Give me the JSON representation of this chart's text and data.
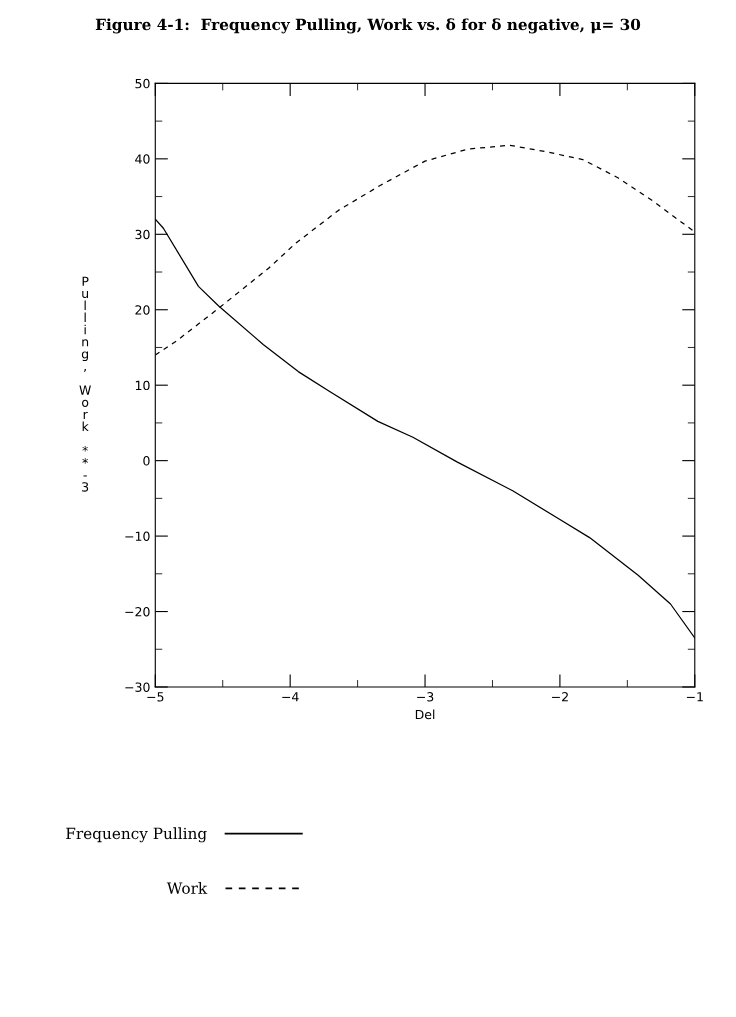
{
  "chart_data": {
    "type": "line",
    "title": "Figure 4-1:  Frequency Pulling, Work vs. δ for δ negative, μ= 30",
    "xlabel": "Del",
    "ylabel": "Pulling, Work **-3",
    "series": [
      {
        "name": "Frequency Pulling",
        "color": "#000000",
        "line_style": "solid",
        "x": [
          -5,
          -4.94,
          -4.68,
          -4.53,
          -4.2,
          -3.94,
          -3.71,
          -3.35,
          -3.09,
          -2.76,
          -2.35,
          -2.0,
          -1.78,
          -1.42,
          -1.18,
          -1.0
        ],
        "values": [
          32,
          30.8,
          23.1,
          20.5,
          15.4,
          11.8,
          9.2,
          5.2,
          3.1,
          -0.2,
          -4.0,
          -7.8,
          -10.2,
          -15.2,
          -19.0,
          -23.5
        ]
      },
      {
        "name": "Work",
        "color": "#000000",
        "line_style": "dashed",
        "x": [
          -5,
          -4.84,
          -4.53,
          -4.16,
          -3.96,
          -3.64,
          -3.33,
          -3.0,
          -2.68,
          -2.37,
          -2.09,
          -1.83,
          -1.57,
          -1.31,
          -1.0
        ],
        "values": [
          14,
          15.9,
          20.2,
          25.5,
          28.8,
          33.2,
          36.5,
          39.7,
          41.3,
          41.8,
          40.9,
          39.9,
          37.5,
          34.4,
          30.3
        ]
      }
    ],
    "xlim": [
      -5,
      -1
    ],
    "ylim": [
      -30,
      50
    ],
    "xticks": [
      -5,
      {
        "value": -4.5,
        "label": null
      },
      -4,
      {
        "value": -3.5,
        "label": null
      },
      -3,
      {
        "value": -2.5,
        "label": null
      },
      -2,
      {
        "value": -1.5,
        "label": null
      },
      -1
    ],
    "yticks": [
      -30,
      {
        "value": -25,
        "label": null
      },
      -20,
      {
        "value": -15,
        "label": null
      },
      -10,
      {
        "value": -5,
        "label": null
      },
      0,
      {
        "value": 5,
        "label": null
      },
      10,
      {
        "value": 15,
        "label": null
      },
      20,
      {
        "value": 25,
        "label": null
      },
      30,
      {
        "value": 35,
        "label": null
      },
      40,
      {
        "value": 45,
        "label": null
      },
      50
    ],
    "grid": false,
    "legend": "bottom"
  }
}
